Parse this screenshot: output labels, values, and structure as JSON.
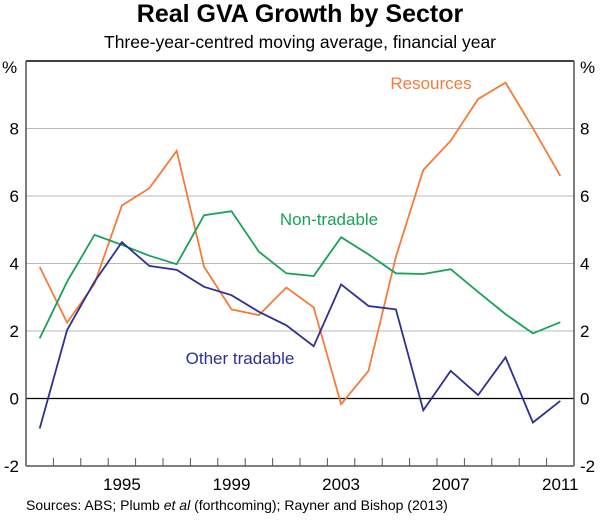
{
  "chart_data": {
    "type": "line",
    "title": "Real GVA Growth by Sector",
    "subtitle": "Three-year-centred moving average, financial year",
    "xlabel": "",
    "ylabel": "%",
    "ylabel_right": "%",
    "ylim": [
      -2,
      10
    ],
    "yticks": [
      -2,
      0,
      2,
      4,
      6,
      8
    ],
    "x": [
      1992,
      1993,
      1994,
      1995,
      1996,
      1997,
      1998,
      1999,
      2000,
      2001,
      2002,
      2003,
      2004,
      2005,
      2006,
      2007,
      2008,
      2009,
      2010,
      2011
    ],
    "xtick_labels": [
      "1995",
      "1999",
      "2003",
      "2007",
      "2011"
    ],
    "grid": true,
    "legend": "inline labels",
    "series": [
      {
        "name": "Resources",
        "color": "#F47B3A",
        "values": [
          3.9,
          2.25,
          3.4,
          5.72,
          6.23,
          7.34,
          3.9,
          2.64,
          2.47,
          3.29,
          2.7,
          -0.17,
          0.82,
          4.2,
          6.77,
          7.64,
          8.87,
          9.36,
          8.01,
          6.6
        ]
      },
      {
        "name": "Non-tradable",
        "color": "#1BA05A",
        "values": [
          1.78,
          3.46,
          4.85,
          4.55,
          4.23,
          3.98,
          5.43,
          5.55,
          4.35,
          3.71,
          3.63,
          4.78,
          4.27,
          3.71,
          3.69,
          3.83,
          3.16,
          2.5,
          1.93,
          2.26
        ]
      },
      {
        "name": "Other tradable",
        "color": "#2E3192",
        "values": [
          -0.89,
          2.03,
          3.46,
          4.63,
          3.93,
          3.81,
          3.31,
          3.06,
          2.57,
          2.17,
          1.55,
          3.38,
          2.74,
          2.64,
          -0.35,
          0.82,
          0.1,
          1.22,
          -0.71,
          -0.07
        ]
      }
    ],
    "source": {
      "prefix": "Sources: ABS; Plumb ",
      "italic": "et al",
      "suffix": " (forthcoming); Rayner and Bishop (2013)"
    }
  }
}
